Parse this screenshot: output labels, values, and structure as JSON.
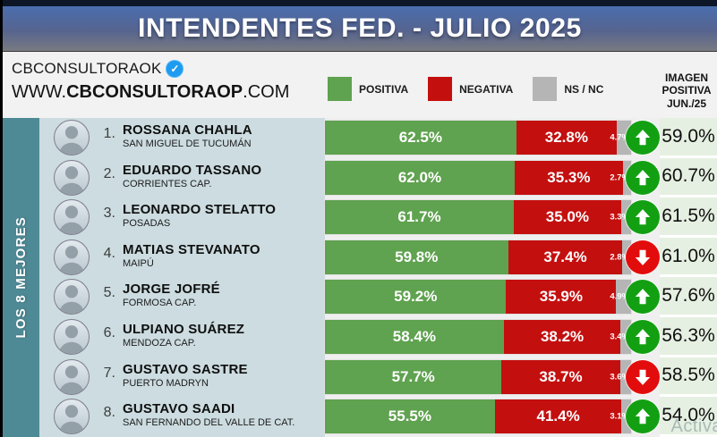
{
  "header": {
    "title": "INTENDENTES FED. - JULIO 2025"
  },
  "brand": {
    "name": "CBCONSULTORAOK",
    "verified_icon": "✓",
    "url_prefix": "WWW.",
    "url_bold": "CBCONSULTORAOP",
    "url_suffix": ".COM"
  },
  "legend": [
    {
      "label": "POSITIVA",
      "color": "#5fa24f"
    },
    {
      "label": "NEGATIVA",
      "color": "#c40f0f"
    },
    {
      "label": "NS / NC",
      "color": "#b5b5b5"
    }
  ],
  "right_header": {
    "lines": [
      "IMAGEN",
      "POSITIVA",
      "JUN./25"
    ]
  },
  "sidebar": {
    "label": "LOS 8 MEJORES"
  },
  "watermark": "Activa",
  "colors": {
    "positive_bar": "#5fa24f",
    "negative_bar": "#c40f0f",
    "nsnc_bar": "#b5b5b5",
    "trend_up_circle": "#12a012",
    "trend_down_circle": "#e30c0c"
  },
  "rows": [
    {
      "rank": "1.",
      "name": "ROSSANA CHAHLA",
      "district": "SAN MIGUEL DE TUCUMÁN",
      "positiva": 62.5,
      "negativa": 32.8,
      "nsnc": 4.7,
      "trend": "up",
      "imagen_jun": "59.0%"
    },
    {
      "rank": "2.",
      "name": "EDUARDO TASSANO",
      "district": "CORRIENTES CAP.",
      "positiva": 62.0,
      "negativa": 35.3,
      "nsnc": 2.7,
      "trend": "up",
      "imagen_jun": "60.7%"
    },
    {
      "rank": "3.",
      "name": "LEONARDO STELATTO",
      "district": "POSADAS",
      "positiva": 61.7,
      "negativa": 35.0,
      "nsnc": 3.3,
      "trend": "up",
      "imagen_jun": "61.5%"
    },
    {
      "rank": "4.",
      "name": "MATIAS STEVANATO",
      "district": "MAIPÚ",
      "positiva": 59.8,
      "negativa": 37.4,
      "nsnc": 2.8,
      "trend": "down",
      "imagen_jun": "61.0%"
    },
    {
      "rank": "5.",
      "name": "JORGE JOFRÉ",
      "district": "FORMOSA CAP.",
      "positiva": 59.2,
      "negativa": 35.9,
      "nsnc": 4.9,
      "trend": "up",
      "imagen_jun": "57.6%"
    },
    {
      "rank": "6.",
      "name": "ULPIANO SUÁREZ",
      "district": "MENDOZA CAP.",
      "positiva": 58.4,
      "negativa": 38.2,
      "nsnc": 3.4,
      "trend": "up",
      "imagen_jun": "56.3%"
    },
    {
      "rank": "7.",
      "name": "GUSTAVO SASTRE",
      "district": "PUERTO MADRYN",
      "positiva": 57.7,
      "negativa": 38.7,
      "nsnc": 3.6,
      "trend": "down",
      "imagen_jun": "58.5%"
    },
    {
      "rank": "8.",
      "name": "GUSTAVO SAADI",
      "district": "SAN FERNANDO DEL VALLE DE CAT.",
      "positiva": 55.5,
      "negativa": 41.4,
      "nsnc": 3.1,
      "trend": "up",
      "imagen_jun": "54.0%"
    }
  ],
  "chart_data": {
    "type": "bar",
    "orientation": "horizontal-stacked",
    "title": "INTENDENTES FED. - JULIO 2025",
    "categories": [
      "ROSSANA CHAHLA",
      "EDUARDO TASSANO",
      "LEONARDO STELATTO",
      "MATIAS STEVANATO",
      "JORGE JOFRÉ",
      "ULPIANO SUÁREZ",
      "GUSTAVO SASTRE",
      "GUSTAVO SAADI"
    ],
    "series": [
      {
        "name": "POSITIVA",
        "color": "#5fa24f",
        "values": [
          62.5,
          62.0,
          61.7,
          59.8,
          59.2,
          58.4,
          57.7,
          55.5
        ]
      },
      {
        "name": "NEGATIVA",
        "color": "#c40f0f",
        "values": [
          32.8,
          35.3,
          35.0,
          37.4,
          35.9,
          38.2,
          38.7,
          41.4
        ]
      },
      {
        "name": "NS / NC",
        "color": "#b5b5b5",
        "values": [
          4.7,
          2.7,
          3.3,
          2.8,
          4.9,
          3.4,
          3.6,
          3.1
        ]
      }
    ],
    "secondary_column": {
      "name": "IMAGEN POSITIVA JUN./25",
      "values": [
        59.0,
        60.7,
        61.5,
        61.0,
        57.6,
        56.3,
        58.5,
        54.0
      ]
    },
    "trend_vs_previous": [
      "up",
      "up",
      "up",
      "down",
      "up",
      "up",
      "down",
      "up"
    ],
    "xlim": [
      0,
      100
    ],
    "legend_position": "top",
    "grid": false
  }
}
